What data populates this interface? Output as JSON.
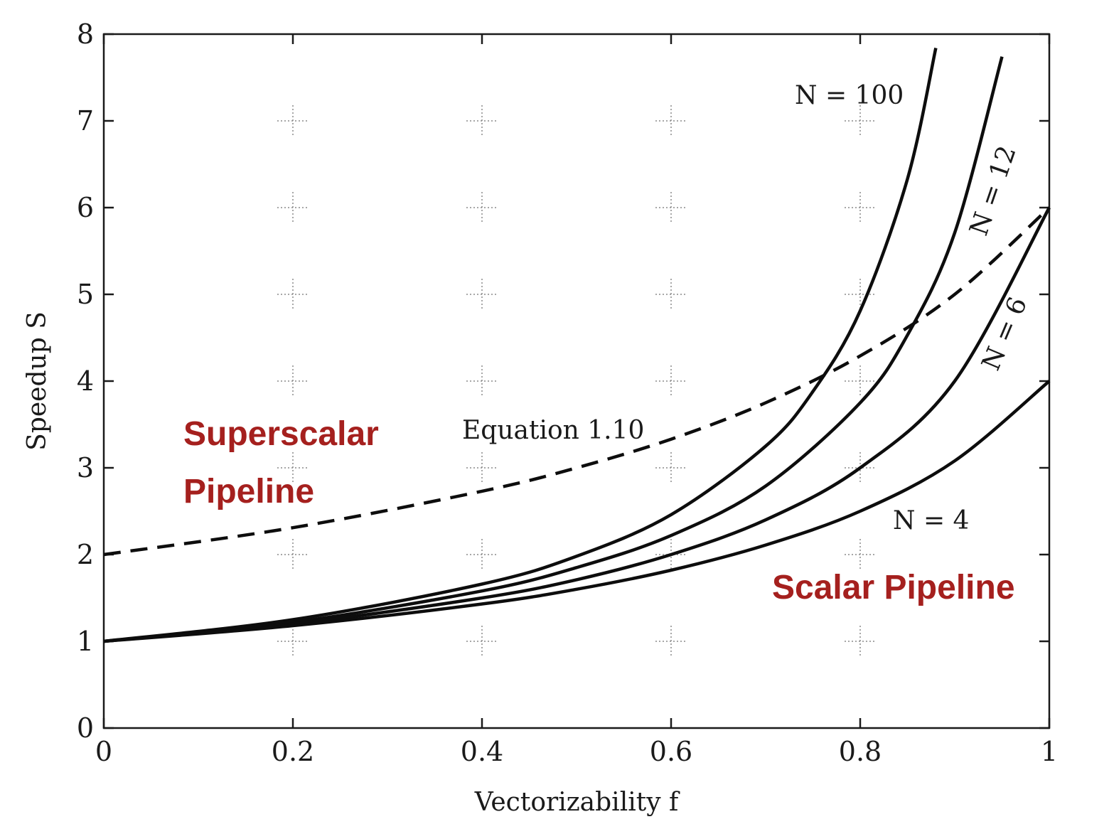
{
  "chart_data": {
    "type": "line",
    "xlabel": "Vectorizability f",
    "ylabel": "Speedup S",
    "xlim": [
      0,
      1
    ],
    "ylim": [
      0,
      8
    ],
    "x_ticks": [
      "0",
      "0.2",
      "0.4",
      "0.6",
      "0.8",
      "1"
    ],
    "y_ticks": [
      "0",
      "1",
      "2",
      "3",
      "4",
      "5",
      "6",
      "7",
      "8"
    ],
    "grid": "dotted crosses at major tick intersections",
    "series": [
      {
        "name": "N = 100",
        "style": "solid",
        "x": [
          0,
          0.2,
          0.4,
          0.5,
          0.6,
          0.7,
          0.75,
          0.8,
          0.85,
          0.88
        ],
        "values": [
          1.0,
          1.25,
          1.66,
          1.98,
          2.46,
          3.25,
          3.88,
          4.81,
          6.33,
          7.84
        ]
      },
      {
        "name": "N = 12",
        "style": "solid",
        "x": [
          0,
          0.2,
          0.4,
          0.5,
          0.6,
          0.7,
          0.8,
          0.85,
          0.9,
          0.95
        ],
        "values": [
          1.0,
          1.22,
          1.58,
          1.85,
          2.22,
          2.79,
          3.75,
          4.53,
          5.71,
          7.74
        ]
      },
      {
        "name": "N = 6",
        "style": "solid",
        "x": [
          0,
          0.2,
          0.4,
          0.5,
          0.6,
          0.7,
          0.8,
          0.9,
          1.0
        ],
        "values": [
          1.0,
          1.2,
          1.5,
          1.71,
          2.0,
          2.4,
          3.0,
          4.0,
          6.0
        ]
      },
      {
        "name": "N = 4",
        "style": "solid",
        "x": [
          0,
          0.2,
          0.4,
          0.5,
          0.6,
          0.7,
          0.8,
          0.9,
          1.0
        ],
        "values": [
          1.0,
          1.18,
          1.43,
          1.6,
          1.82,
          2.11,
          2.5,
          3.08,
          4.0
        ]
      },
      {
        "name": "Equation 1.10",
        "style": "dashed",
        "x": [
          0,
          0.2,
          0.4,
          0.5,
          0.6,
          0.7,
          0.8,
          0.9,
          1.0
        ],
        "values": [
          2.0,
          2.31,
          2.73,
          3.0,
          3.33,
          3.75,
          4.29,
          5.0,
          6.0
        ]
      }
    ],
    "annotations": [
      {
        "text": "Superscalar",
        "color": "#a5201e"
      },
      {
        "text": "Pipeline",
        "color": "#a5201e"
      },
      {
        "text": "Scalar Pipeline",
        "color": "#a5201e"
      }
    ],
    "colors": {
      "curve": "#0d0d0d",
      "overlay": "#a5201e"
    }
  }
}
